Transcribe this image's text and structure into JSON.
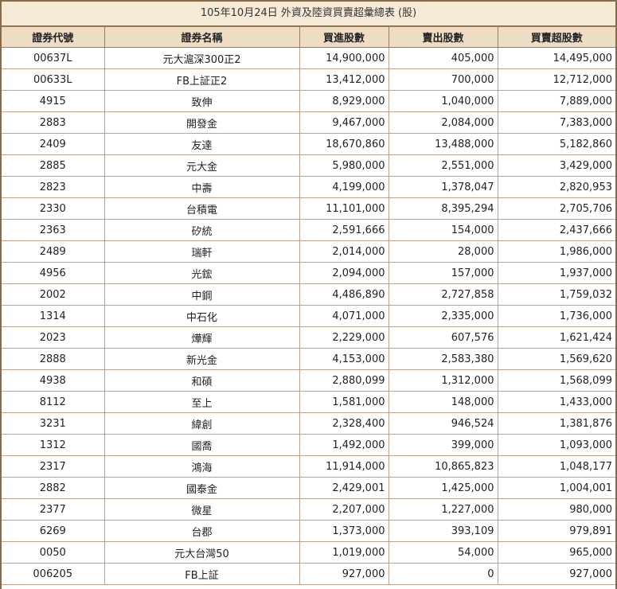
{
  "title": "105年10月24日 外資及陸資買賣超彙總表 (股)",
  "columns": [
    "證券代號",
    "證券名稱",
    "買進股數",
    "賣出股數",
    "買賣超股數"
  ],
  "rows": [
    [
      "00637L",
      "元大滬深300正2",
      "14,900,000",
      "405,000",
      "14,495,000"
    ],
    [
      "00633L",
      "FB上証正2",
      "13,412,000",
      "700,000",
      "12,712,000"
    ],
    [
      "4915",
      "致伸",
      "8,929,000",
      "1,040,000",
      "7,889,000"
    ],
    [
      "2883",
      "開發金",
      "9,467,000",
      "2,084,000",
      "7,383,000"
    ],
    [
      "2409",
      "友達",
      "18,670,860",
      "13,488,000",
      "5,182,860"
    ],
    [
      "2885",
      "元大金",
      "5,980,000",
      "2,551,000",
      "3,429,000"
    ],
    [
      "2823",
      "中壽",
      "4,199,000",
      "1,378,047",
      "2,820,953"
    ],
    [
      "2330",
      "台積電",
      "11,101,000",
      "8,395,294",
      "2,705,706"
    ],
    [
      "2363",
      "矽統",
      "2,591,666",
      "154,000",
      "2,437,666"
    ],
    [
      "2489",
      "瑞軒",
      "2,014,000",
      "28,000",
      "1,986,000"
    ],
    [
      "4956",
      "光鋐",
      "2,094,000",
      "157,000",
      "1,937,000"
    ],
    [
      "2002",
      "中鋼",
      "4,486,890",
      "2,727,858",
      "1,759,032"
    ],
    [
      "1314",
      "中石化",
      "4,071,000",
      "2,335,000",
      "1,736,000"
    ],
    [
      "2023",
      "燁輝",
      "2,229,000",
      "607,576",
      "1,621,424"
    ],
    [
      "2888",
      "新光金",
      "4,153,000",
      "2,583,380",
      "1,569,620"
    ],
    [
      "4938",
      "和碩",
      "2,880,099",
      "1,312,000",
      "1,568,099"
    ],
    [
      "8112",
      "至上",
      "1,581,000",
      "148,000",
      "1,433,000"
    ],
    [
      "3231",
      "緯創",
      "2,328,400",
      "946,524",
      "1,381,876"
    ],
    [
      "1312",
      "國喬",
      "1,492,000",
      "399,000",
      "1,093,000"
    ],
    [
      "2317",
      "鴻海",
      "11,914,000",
      "10,865,823",
      "1,048,177"
    ],
    [
      "2882",
      "國泰金",
      "2,429,001",
      "1,425,000",
      "1,004,001"
    ],
    [
      "2377",
      "微星",
      "2,207,000",
      "1,227,000",
      "980,000"
    ],
    [
      "6269",
      "台郡",
      "1,373,000",
      "393,109",
      "979,891"
    ],
    [
      "0050",
      "元大台灣50",
      "1,019,000",
      "54,000",
      "965,000"
    ],
    [
      "006205",
      "FB上証",
      "927,000",
      "0",
      "927,000"
    ]
  ]
}
